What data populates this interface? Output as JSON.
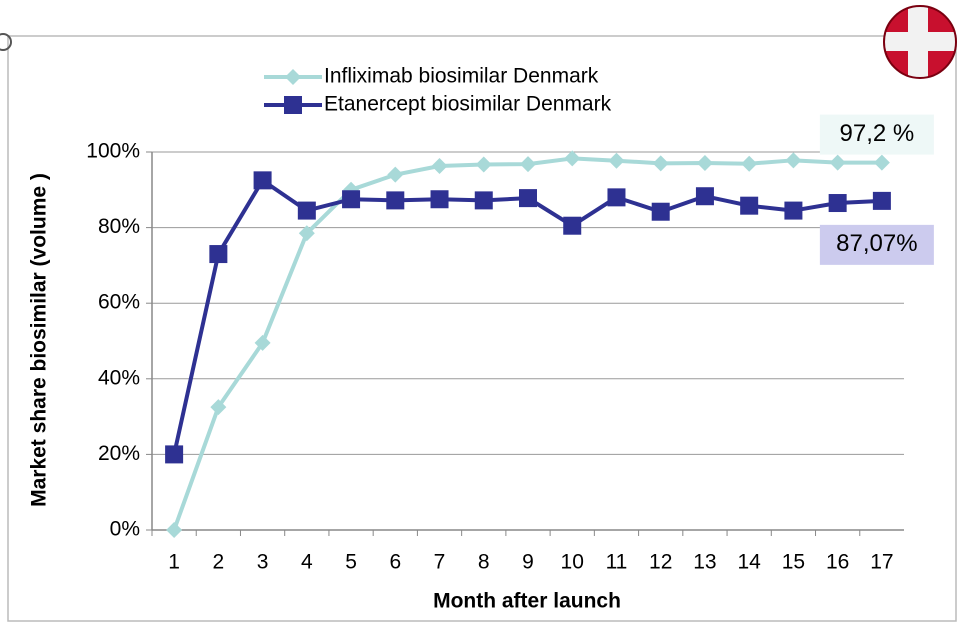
{
  "chart_data": {
    "type": "line",
    "x_label": "Month after launch",
    "y_label": "Market share biosimilar  (volume )",
    "categories": [
      "1",
      "2",
      "3",
      "4",
      "5",
      "6",
      "7",
      "8",
      "9",
      "10",
      "11",
      "12",
      "13",
      "14",
      "15",
      "16",
      "17"
    ],
    "series": [
      {
        "name": "Infliximab biosimilar Denmark",
        "color": "#a8d9d8",
        "marker": "diamond",
        "values": [
          0,
          32.5,
          49.5,
          78.5,
          90,
          94,
          96.3,
          96.7,
          96.8,
          98.3,
          97.7,
          97,
          97.1,
          96.9,
          97.8,
          97.2,
          97.2
        ],
        "value_labels": [
          null,
          null,
          null,
          null,
          null,
          null,
          null,
          null,
          null,
          null,
          null,
          null,
          null,
          null,
          null,
          null,
          "97,2 %"
        ],
        "label_color": "#eef8f7"
      },
      {
        "name": "Etanercept biosimilar Denmark",
        "color": "#2e3192",
        "marker": "square",
        "values": [
          20,
          73,
          92.5,
          84.5,
          87.5,
          87.2,
          87.5,
          87.2,
          87.8,
          80.5,
          88,
          84.2,
          88.3,
          85.8,
          84.5,
          86.5,
          87.07
        ],
        "value_labels": [
          null,
          null,
          null,
          null,
          null,
          null,
          null,
          null,
          null,
          null,
          null,
          null,
          null,
          null,
          null,
          null,
          "87,07%"
        ],
        "label_color": "#cccbee"
      }
    ],
    "ylim": [
      0,
      100
    ],
    "yticks": [
      {
        "value": 0,
        "label": "0%"
      },
      {
        "value": 20,
        "label": "20%"
      },
      {
        "value": 40,
        "label": "40%"
      },
      {
        "value": 60,
        "label": "60%"
      },
      {
        "value": 80,
        "label": "80%"
      },
      {
        "value": 100,
        "label": "100%"
      }
    ],
    "grid": true,
    "legend": "top"
  }
}
